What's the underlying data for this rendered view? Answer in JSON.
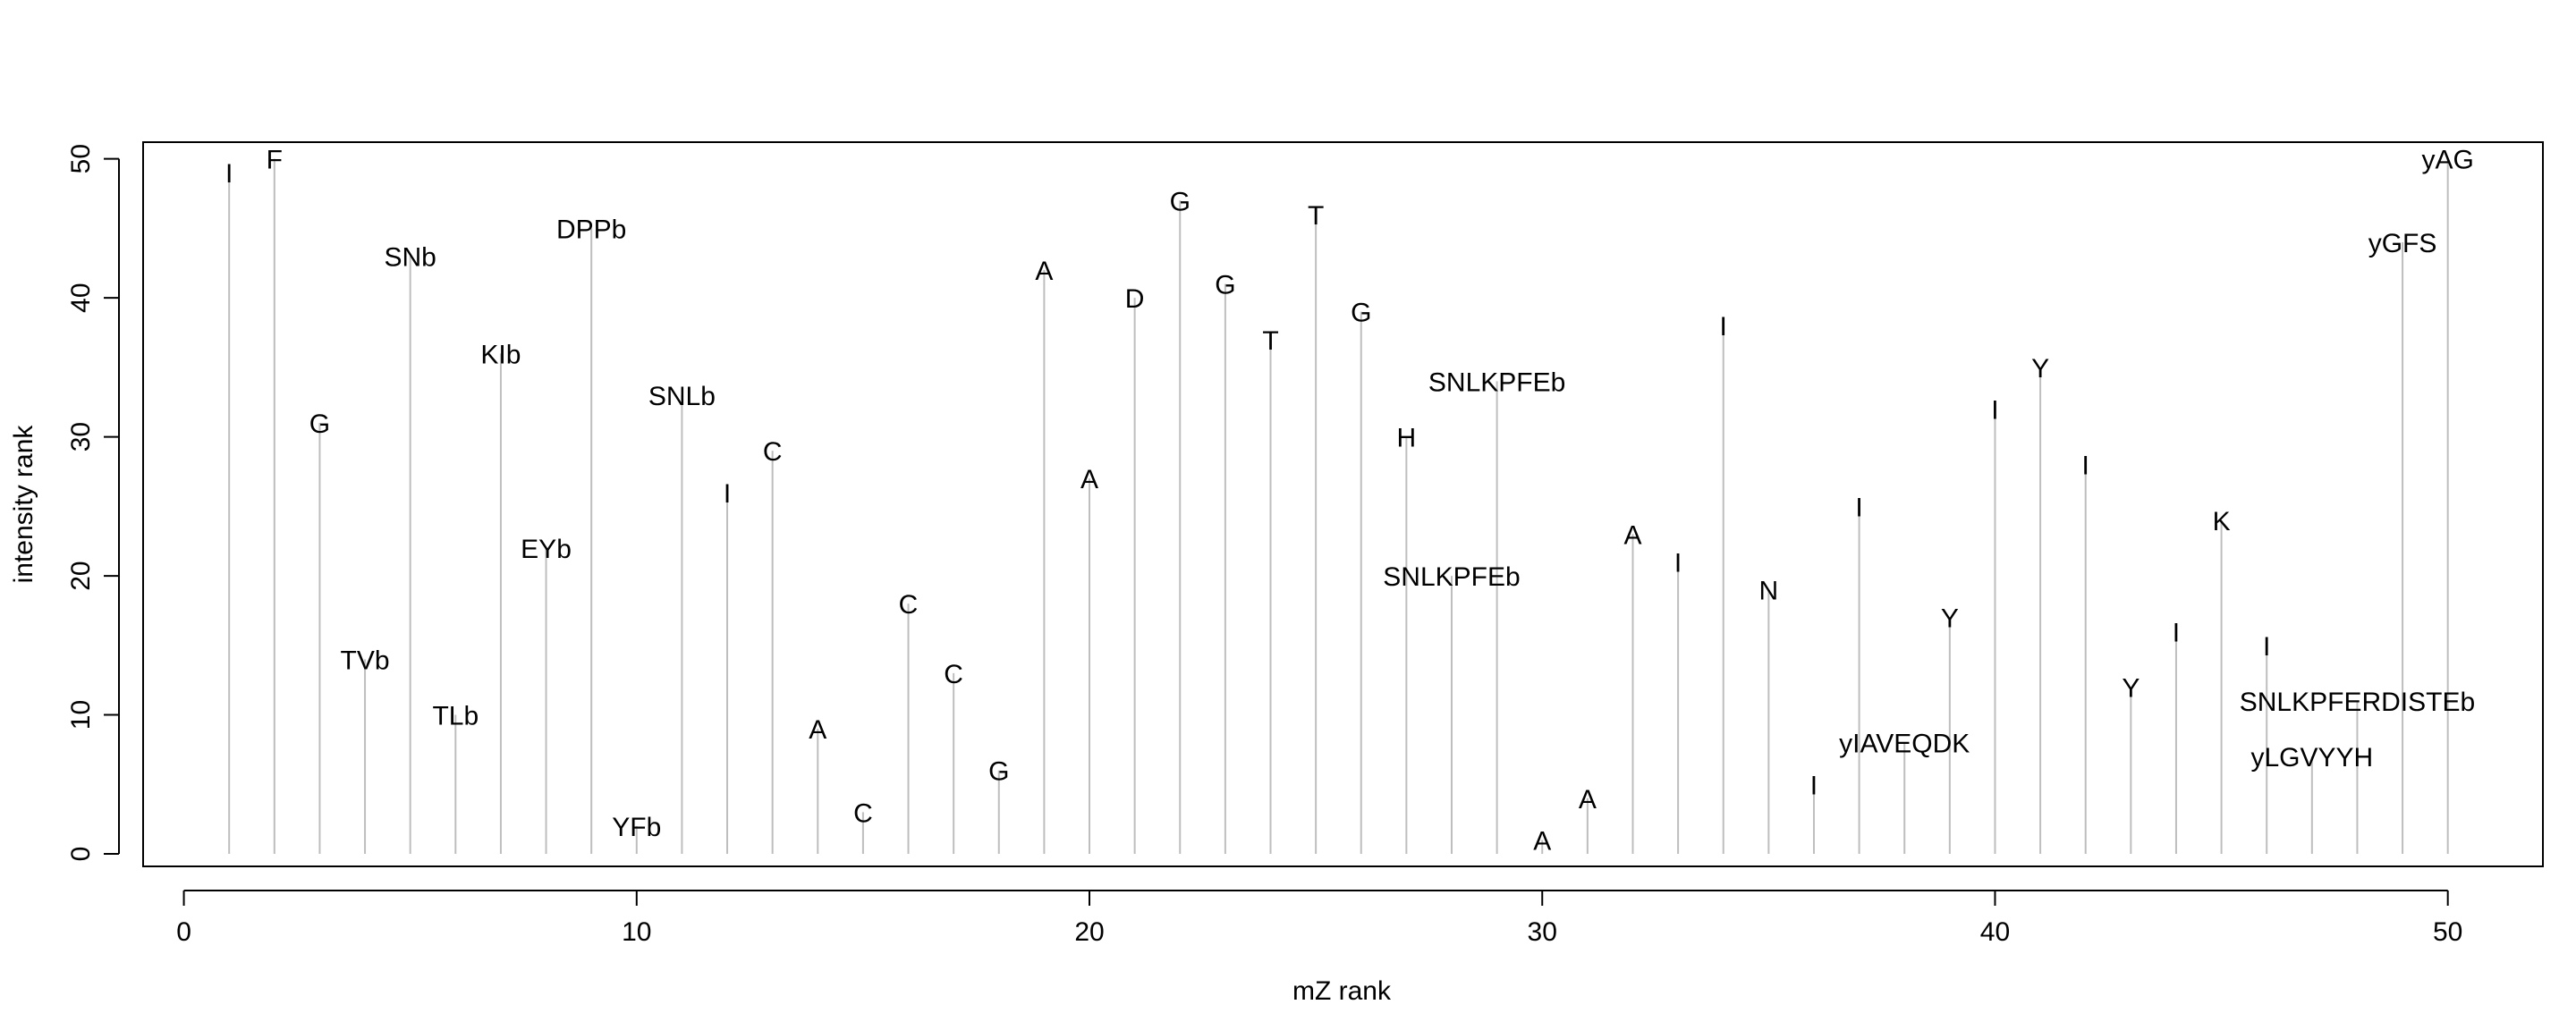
{
  "chart_data": {
    "type": "bar",
    "xlabel": "mZ rank",
    "ylabel": "intensity rank",
    "xlim": [
      -0.9,
      52.1
    ],
    "ylim": [
      -0.9,
      51.2
    ],
    "xticks": [
      0,
      10,
      20,
      30,
      40,
      50
    ],
    "yticks": [
      0,
      10,
      20,
      30,
      40,
      50
    ],
    "grid": false,
    "mark_color": "#bebebe",
    "points": [
      {
        "x": 1,
        "y": 49,
        "label": "I"
      },
      {
        "x": 2,
        "y": 50,
        "label": "F"
      },
      {
        "x": 3,
        "y": 31,
        "label": "G"
      },
      {
        "x": 4,
        "y": 14,
        "label": "TVb"
      },
      {
        "x": 5,
        "y": 43,
        "label": "SNb"
      },
      {
        "x": 6,
        "y": 10,
        "label": "TLb"
      },
      {
        "x": 7,
        "y": 36,
        "label": "KIb"
      },
      {
        "x": 8,
        "y": 22,
        "label": "EYb"
      },
      {
        "x": 9,
        "y": 45,
        "label": "DPPb"
      },
      {
        "x": 10,
        "y": 2,
        "label": "YFb"
      },
      {
        "x": 11,
        "y": 33,
        "label": "SNLb"
      },
      {
        "x": 12,
        "y": 26,
        "label": "I"
      },
      {
        "x": 13,
        "y": 29,
        "label": "C"
      },
      {
        "x": 14,
        "y": 9,
        "label": "A"
      },
      {
        "x": 15,
        "y": 3,
        "label": "C"
      },
      {
        "x": 16,
        "y": 18,
        "label": "C"
      },
      {
        "x": 17,
        "y": 13,
        "label": "C"
      },
      {
        "x": 18,
        "y": 6,
        "label": "G"
      },
      {
        "x": 19,
        "y": 42,
        "label": "A"
      },
      {
        "x": 20,
        "y": 27,
        "label": "A"
      },
      {
        "x": 21,
        "y": 40,
        "label": "D"
      },
      {
        "x": 22,
        "y": 47,
        "label": "G"
      },
      {
        "x": 23,
        "y": 41,
        "label": "G"
      },
      {
        "x": 24,
        "y": 37,
        "label": "T"
      },
      {
        "x": 25,
        "y": 46,
        "label": "T"
      },
      {
        "x": 26,
        "y": 39,
        "label": "G"
      },
      {
        "x": 27,
        "y": 30,
        "label": "H"
      },
      {
        "x": 28,
        "y": 20,
        "label": "SNLKPFEb"
      },
      {
        "x": 29,
        "y": 34,
        "label": "SNLKPFEb"
      },
      {
        "x": 30,
        "y": 1,
        "label": "A"
      },
      {
        "x": 31,
        "y": 4,
        "label": "A"
      },
      {
        "x": 32,
        "y": 23,
        "label": "A"
      },
      {
        "x": 33,
        "y": 21,
        "label": "I"
      },
      {
        "x": 34,
        "y": 38,
        "label": "I"
      },
      {
        "x": 35,
        "y": 19,
        "label": "N"
      },
      {
        "x": 36,
        "y": 5,
        "label": "I"
      },
      {
        "x": 37,
        "y": 25,
        "label": "I"
      },
      {
        "x": 38,
        "y": 8,
        "label": "yIAVEQDK"
      },
      {
        "x": 39,
        "y": 17,
        "label": "Y"
      },
      {
        "x": 40,
        "y": 32,
        "label": "I"
      },
      {
        "x": 41,
        "y": 35,
        "label": "Y"
      },
      {
        "x": 42,
        "y": 28,
        "label": "I"
      },
      {
        "x": 43,
        "y": 12,
        "label": "Y"
      },
      {
        "x": 44,
        "y": 16,
        "label": "I"
      },
      {
        "x": 45,
        "y": 24,
        "label": "K"
      },
      {
        "x": 46,
        "y": 15,
        "label": "I"
      },
      {
        "x": 47,
        "y": 7,
        "label": "yLGVYYH"
      },
      {
        "x": 48,
        "y": 11,
        "label": "SNLKPFERDISTEb"
      },
      {
        "x": 49,
        "y": 44,
        "label": "yGFS"
      },
      {
        "x": 50,
        "y": 50,
        "label": "yAG"
      }
    ]
  }
}
